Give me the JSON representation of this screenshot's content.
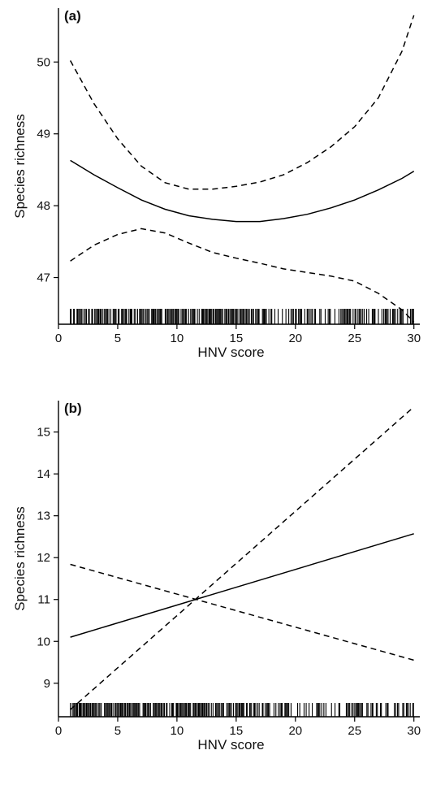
{
  "chart_data": [
    {
      "type": "line",
      "panel_label": "(a)",
      "xlabel": "HNV score",
      "ylabel": "Species richness",
      "xlim": [
        0,
        30.5
      ],
      "ylim": [
        46.35,
        50.75
      ],
      "xticks": [
        0,
        5,
        10,
        15,
        20,
        25,
        30
      ],
      "yticks": [
        47,
        48,
        49,
        50
      ],
      "x": [
        1,
        3,
        5,
        7,
        9,
        11,
        13,
        15,
        17,
        19,
        21,
        23,
        25,
        27,
        29,
        30
      ],
      "series": [
        {
          "style": "solid",
          "values": [
            48.63,
            48.43,
            48.25,
            48.08,
            47.95,
            47.86,
            47.81,
            47.78,
            47.78,
            47.82,
            47.88,
            47.97,
            48.08,
            48.22,
            48.38,
            48.48
          ]
        },
        {
          "style": "dashed",
          "values": [
            50.02,
            49.42,
            48.93,
            48.55,
            48.32,
            48.23,
            48.23,
            48.27,
            48.33,
            48.43,
            48.6,
            48.82,
            49.1,
            49.5,
            50.15,
            50.65
          ]
        },
        {
          "style": "dashed",
          "values": [
            47.23,
            47.45,
            47.6,
            47.68,
            47.62,
            47.48,
            47.35,
            47.27,
            47.2,
            47.12,
            47.07,
            47.02,
            46.95,
            46.78,
            46.55,
            46.38
          ]
        }
      ],
      "rug": true,
      "grid": false
    },
    {
      "type": "line",
      "panel_label": "(b)",
      "xlabel": "HNV score",
      "ylabel": "Species richness",
      "xlim": [
        0,
        30.5
      ],
      "ylim": [
        8.2,
        15.75
      ],
      "xticks": [
        0,
        5,
        10,
        15,
        20,
        25,
        30
      ],
      "yticks": [
        9,
        10,
        11,
        12,
        13,
        14,
        15
      ],
      "x": [
        1,
        30
      ],
      "series": [
        {
          "style": "solid",
          "values": [
            10.1,
            12.57
          ]
        },
        {
          "style": "dashed",
          "values": [
            8.37,
            15.6
          ]
        },
        {
          "style": "dashed",
          "values": [
            11.84,
            9.55
          ]
        }
      ],
      "rug": true,
      "grid": false
    }
  ]
}
